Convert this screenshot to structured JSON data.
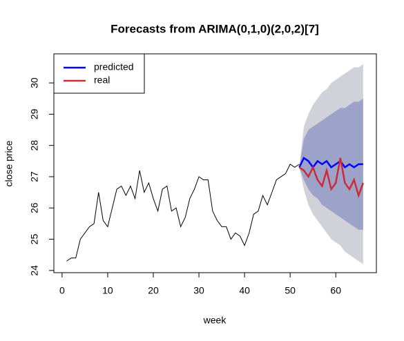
{
  "chart_data": {
    "type": "forecast",
    "title": "Forecasts from ARIMA(0,1,0)(2,0,2)[7]",
    "xlabel": "week",
    "ylabel": "close price",
    "xlim": [
      -1.8,
      68.9
    ],
    "ylim": [
      23.93,
      30.93
    ],
    "xticks": [
      0,
      10,
      20,
      30,
      40,
      50,
      60
    ],
    "yticks": [
      24,
      25,
      26,
      27,
      28,
      29,
      30
    ],
    "legend": "top-left",
    "history": {
      "color": "#000000",
      "x": [
        1,
        2,
        3,
        4,
        5,
        6,
        7,
        8,
        9,
        10,
        11,
        12,
        13,
        14,
        15,
        16,
        17,
        18,
        19,
        20,
        21,
        22,
        23,
        24,
        25,
        26,
        27,
        28,
        29,
        30,
        31,
        32,
        33,
        34,
        35,
        36,
        37,
        38,
        39,
        40,
        41,
        42,
        43,
        44,
        45,
        46,
        47,
        48,
        49,
        50,
        51,
        52
      ],
      "values": [
        24.3,
        24.4,
        24.4,
        25.0,
        25.2,
        25.4,
        25.5,
        26.5,
        25.6,
        25.4,
        26.0,
        26.6,
        26.7,
        26.4,
        26.7,
        26.3,
        27.2,
        26.5,
        26.8,
        26.3,
        25.9,
        26.6,
        26.7,
        25.9,
        26.0,
        25.4,
        25.7,
        26.3,
        26.6,
        27.0,
        26.9,
        26.9,
        25.9,
        25.6,
        25.4,
        25.4,
        25.0,
        25.2,
        25.1,
        24.8,
        25.2,
        25.8,
        25.9,
        26.4,
        26.1,
        26.5,
        26.9,
        27.0,
        27.1,
        27.4,
        27.3,
        27.4
      ]
    },
    "forecast_x": [
      52,
      53,
      54,
      55,
      56,
      57,
      58,
      59,
      60,
      61,
      62,
      63,
      64,
      65,
      66
    ],
    "bands": [
      {
        "color": "#d1d1da",
        "lower": [
          27.3,
          26.6,
          26.1,
          25.8,
          25.6,
          25.4,
          25.2,
          25.0,
          24.9,
          24.8,
          24.6,
          24.5,
          24.4,
          24.3,
          24.2
        ],
        "upper": [
          27.3,
          28.6,
          29.0,
          29.3,
          29.5,
          29.7,
          29.8,
          30.0,
          30.1,
          30.2,
          30.3,
          30.4,
          30.5,
          30.5,
          30.6
        ]
      },
      {
        "color": "#9da3c8",
        "lower": [
          27.3,
          26.9,
          26.6,
          26.4,
          26.3,
          26.1,
          26.0,
          25.9,
          25.8,
          25.7,
          25.6,
          25.5,
          25.4,
          25.3,
          25.3
        ],
        "upper": [
          27.3,
          28.2,
          28.5,
          28.6,
          28.7,
          28.8,
          28.9,
          29.0,
          29.1,
          29.2,
          29.2,
          29.3,
          29.4,
          29.4,
          29.5
        ]
      }
    ],
    "series": [
      {
        "name": "predicted",
        "color": "#0000ff",
        "values": [
          27.3,
          27.6,
          27.5,
          27.3,
          27.5,
          27.4,
          27.5,
          27.3,
          27.4,
          27.5,
          27.3,
          27.4,
          27.3,
          27.4,
          27.4
        ]
      },
      {
        "name": "real",
        "color": "#cc2a36",
        "values": [
          27.3,
          27.2,
          27.0,
          27.3,
          26.9,
          26.7,
          27.2,
          26.6,
          26.8,
          27.6,
          26.8,
          26.6,
          26.9,
          26.4,
          26.8
        ]
      }
    ]
  }
}
